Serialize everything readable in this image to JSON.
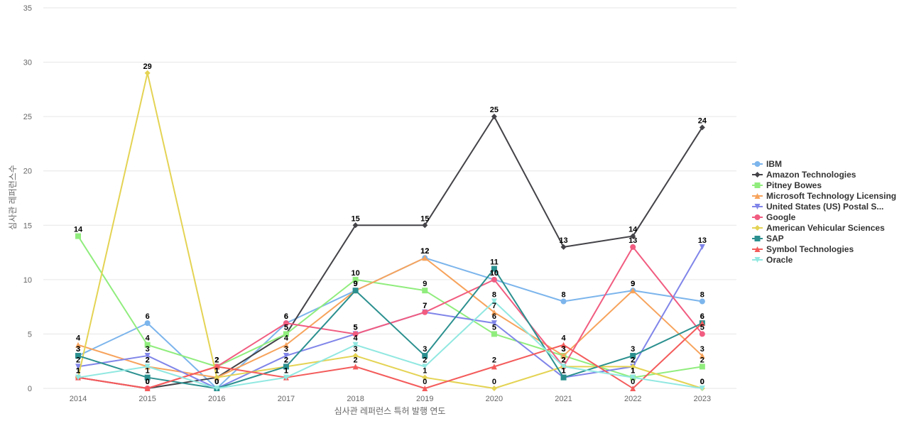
{
  "chart_data": {
    "type": "line",
    "title": "",
    "xlabel": "심사관 레퍼런스 특허 발행 연도",
    "ylabel": "심사관 레퍼런스수",
    "ylim": [
      0,
      35
    ],
    "yticks": [
      0,
      5,
      10,
      15,
      20,
      25,
      30,
      35
    ],
    "categories": [
      "2014",
      "2015",
      "2016",
      "2017",
      "2018",
      "2019",
      "2020",
      "2021",
      "2022",
      "2023"
    ],
    "legend_position": "right",
    "series": [
      {
        "name": "IBM",
        "color": "#7cb5ec",
        "marker": "circle",
        "values": [
          3,
          6,
          0,
          6,
          9,
          12,
          10,
          8,
          9,
          8
        ]
      },
      {
        "name": "Amazon Technologies",
        "color": "#434348",
        "marker": "diamond",
        "values": [
          1,
          0,
          1,
          5,
          15,
          15,
          25,
          13,
          14,
          24
        ]
      },
      {
        "name": "Pitney Bowes",
        "color": "#90ed7d",
        "marker": "square",
        "values": [
          14,
          4,
          2,
          5,
          10,
          9,
          5,
          3,
          1,
          2
        ]
      },
      {
        "name": "Microsoft Technology Licensing",
        "color": "#f7a35c",
        "marker": "triangle",
        "values": [
          4,
          2,
          1,
          4,
          9,
          12,
          7,
          3,
          9,
          3
        ]
      },
      {
        "name": "United States (US) Postal S...",
        "color": "#8085e9",
        "marker": "triangle-down",
        "values": [
          2,
          3,
          0,
          3,
          5,
          7,
          6,
          1,
          2,
          13
        ]
      },
      {
        "name": "Google",
        "color": "#f15c80",
        "marker": "circle",
        "values": [
          1,
          0,
          2,
          6,
          5,
          7,
          10,
          2,
          13,
          5
        ]
      },
      {
        "name": "American Vehicular Sciences",
        "color": "#e4d354",
        "marker": "diamond",
        "values": [
          1,
          29,
          1,
          2,
          3,
          1,
          0,
          2,
          2,
          0
        ]
      },
      {
        "name": "SAP",
        "color": "#2b908f",
        "marker": "square",
        "values": [
          3,
          1,
          0,
          2,
          9,
          3,
          11,
          1,
          3,
          6
        ]
      },
      {
        "name": "Symbol Technologies",
        "color": "#f45b5b",
        "marker": "triangle",
        "values": [
          1,
          0,
          2,
          1,
          2,
          0,
          2,
          4,
          0,
          6
        ]
      },
      {
        "name": "Oracle",
        "color": "#91e8e1",
        "marker": "triangle-down",
        "values": [
          1,
          2,
          0,
          1,
          4,
          2,
          8,
          2,
          1,
          0
        ]
      }
    ]
  }
}
